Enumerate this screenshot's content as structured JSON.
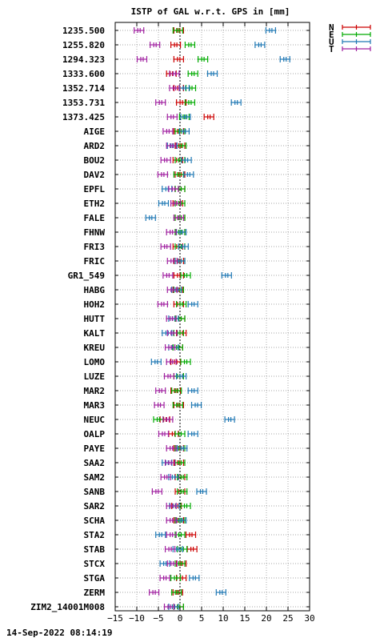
{
  "chart_data": {
    "type": "scatter",
    "title": "ISTP of GAL w.r.t. GPS in [mm]",
    "timestamp": "14-Sep-2022 08:14:19",
    "xlim": [
      -15,
      30
    ],
    "xticks": [
      -15,
      -10,
      -5,
      0,
      5,
      10,
      15,
      20,
      25,
      30
    ],
    "grid": true,
    "legend_position": "top-right, outside plot",
    "legend": [
      "N",
      "E",
      "U",
      "T"
    ],
    "colors": {
      "N": "#cc0000",
      "E": "#00aa00",
      "U": "#1f78b4",
      "T": "#a020a0"
    },
    "categories": [
      "1235.500",
      "1255.820",
      "1294.323",
      "1333.600",
      "1352.714",
      "1353.731",
      "1373.425",
      "AIGE",
      "ARD2",
      "BOU2",
      "DAV2",
      "EPFL",
      "ETH2",
      "FALE",
      "FHNW",
      "FRI3",
      "FRIC",
      "GR1_549",
      "HABG",
      "HOH2",
      "HUTT",
      "KALT",
      "KREU",
      "LOMO",
      "LUZE",
      "MAR2",
      "MAR3",
      "NEUC",
      "OALP",
      "PAYE",
      "SAA2",
      "SAM2",
      "SANB",
      "SAR2",
      "SCHA",
      "STA2",
      "STAB",
      "STCX",
      "STGA",
      "ZERM",
      "ZIM2_14001M008"
    ],
    "series": [
      {
        "name": "N",
        "values": [
          -0.3,
          -1.0,
          -0.3,
          -2.0,
          -0.3,
          0.3,
          6.7,
          -0.3,
          0.0,
          -0.5,
          0.0,
          0.0,
          -0.5,
          0.0,
          0.0,
          -0.5,
          -0.3,
          -0.3,
          -0.5,
          -0.3,
          0.0,
          0.3,
          -0.5,
          -1.0,
          -0.3,
          -1.0,
          -0.3,
          -3.5,
          -1.5,
          -0.3,
          -0.3,
          0.0,
          0.0,
          -0.8,
          -0.3,
          2.5,
          2.8,
          0.3,
          0.3,
          -0.5,
          -0.3
        ]
      },
      {
        "name": "E",
        "values": [
          -0.5,
          2.3,
          5.3,
          3.0,
          2.5,
          2.3,
          1.0,
          0.0,
          0.3,
          0.0,
          -0.3,
          0.0,
          0.0,
          0.0,
          0.0,
          0.0,
          0.0,
          1.3,
          -0.3,
          0.3,
          0.0,
          -0.3,
          -0.5,
          1.3,
          -0.3,
          -0.8,
          -0.5,
          -5.0,
          0.0,
          0.0,
          0.0,
          0.5,
          0.5,
          1.3,
          0.0,
          0.0,
          0.5,
          0.0,
          -1.0,
          -0.8,
          -0.3
        ]
      },
      {
        "name": "U",
        "values": [
          21.0,
          18.5,
          24.3,
          7.5,
          1.0,
          13.0,
          1.3,
          1.0,
          -1.8,
          1.5,
          2.0,
          -3.0,
          -3.8,
          -6.8,
          0.3,
          0.8,
          0.0,
          10.8,
          -0.8,
          3.0,
          -1.5,
          -3.0,
          -1.5,
          -5.5,
          0.3,
          3.0,
          3.8,
          11.5,
          3.0,
          0.5,
          -3.0,
          -1.5,
          5.0,
          -1.3,
          0.3,
          -4.5,
          -0.5,
          -3.5,
          3.3,
          9.5,
          -1.5
        ]
      },
      {
        "name": "T",
        "values": [
          -9.5,
          -5.8,
          -8.8,
          -1.3,
          -1.3,
          -4.5,
          -1.8,
          -2.8,
          -2.0,
          -3.3,
          -4.0,
          -1.5,
          -1.0,
          -0.3,
          -2.0,
          -3.3,
          -1.8,
          -2.8,
          -1.8,
          -4.0,
          -2.0,
          -1.8,
          -2.3,
          -2.0,
          -2.5,
          -4.5,
          -4.8,
          -2.8,
          -3.8,
          -2.0,
          -2.3,
          -3.3,
          -5.3,
          -2.0,
          -2.0,
          -2.0,
          -2.3,
          -1.8,
          -3.5,
          -6.0,
          -2.5
        ]
      }
    ]
  }
}
